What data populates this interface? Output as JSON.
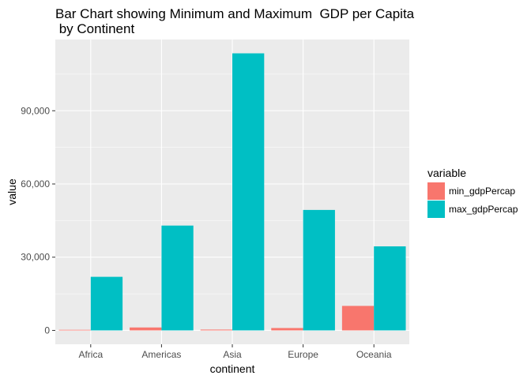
{
  "chart_data": {
    "type": "bar",
    "title_lines": [
      "Bar Chart showing Minimum and Maximum  GDP per Capita",
      " by Continent"
    ],
    "xlabel": "continent",
    "ylabel": "value",
    "categories": [
      "Africa",
      "Americas",
      "Asia",
      "Europe",
      "Oceania"
    ],
    "series": [
      {
        "name": "min_gdpPercap",
        "values": [
          241,
          1202,
          331,
          974,
          10040
        ],
        "color": "#F8766D"
      },
      {
        "name": "max_gdpPercap",
        "values": [
          21951,
          42952,
          113523,
          49357,
          34435
        ],
        "color": "#00BFC4"
      }
    ],
    "y_ticks": [
      0,
      30000,
      60000,
      90000
    ],
    "y_tick_labels": [
      "0",
      "30,000",
      "60,000",
      "90,000"
    ],
    "ylim": [
      -5676,
      119199
    ],
    "grid": true,
    "panel_background": "#EBEBEB",
    "legend": {
      "title": "variable",
      "position": "right"
    }
  }
}
